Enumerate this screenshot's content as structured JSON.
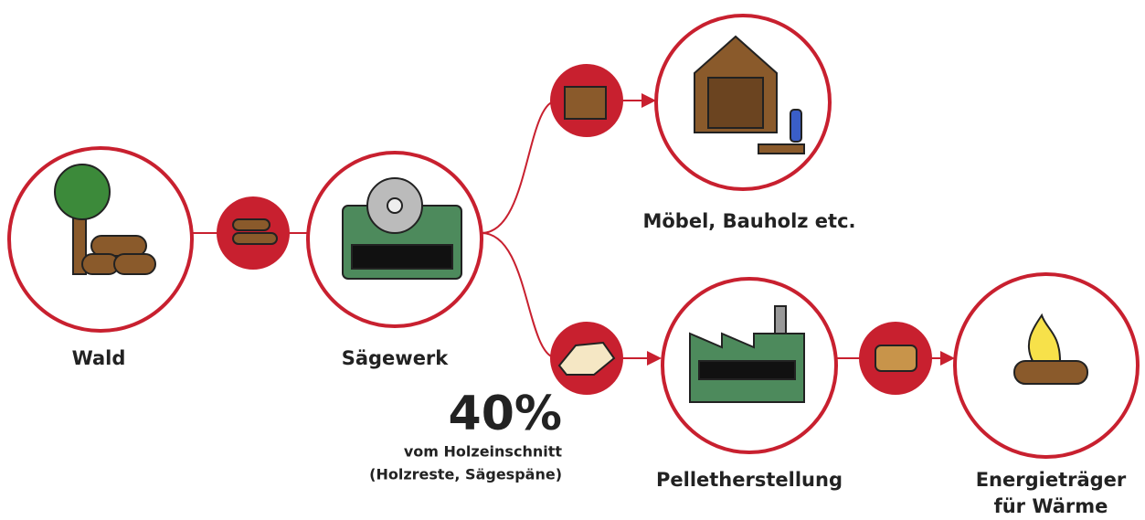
{
  "nodes": [
    {
      "label": "Wald"
    },
    {
      "label": "Sägewerk"
    },
    {
      "label": "Möbel, Bauholz etc."
    },
    {
      "label": "Pelletherstellung"
    },
    {
      "label": "Energieträger",
      "label2": "für Wärme"
    }
  ],
  "note": {
    "value": "40%",
    "line1": "vom Holzeinschnitt",
    "line2": "(Holzreste, Sägespäne)"
  }
}
